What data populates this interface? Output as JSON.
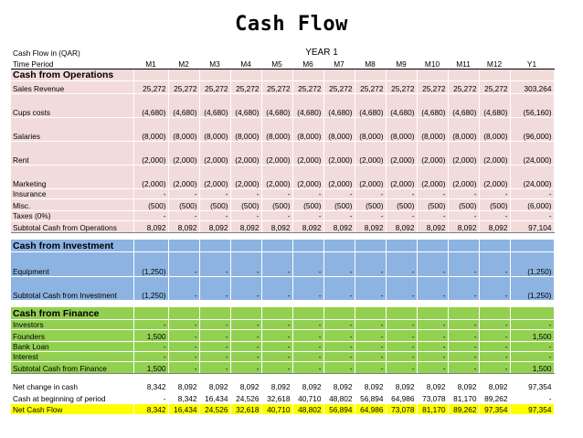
{
  "title": "Cash Flow",
  "header": {
    "row1_label": "Cash Flow in (QAR)",
    "year_label": "YEAR 1",
    "row2_label": "Time Period",
    "months": [
      "M1",
      "M2",
      "M3",
      "M4",
      "M5",
      "M6",
      "M7",
      "M8",
      "M9",
      "M10",
      "M11",
      "M12"
    ],
    "total_label": "Y1"
  },
  "operations": {
    "heading": "Cash from Operations",
    "rows": [
      {
        "label": "Sales Revenue",
        "values": [
          "25,272",
          "25,272",
          "25,272",
          "25,272",
          "25,272",
          "25,272",
          "25,272",
          "25,272",
          "25,272",
          "25,272",
          "25,272",
          "25,272"
        ],
        "total": "303,264"
      },
      {
        "label": "Cups costs",
        "values": [
          "(4,680)",
          "(4,680)",
          "(4,680)",
          "(4,680)",
          "(4,680)",
          "(4,680)",
          "(4,680)",
          "(4,680)",
          "(4,680)",
          "(4,680)",
          "(4,680)",
          "(4,680)"
        ],
        "total": "(56,160)"
      },
      {
        "label": "Salaries",
        "values": [
          "(8,000)",
          "(8,000)",
          "(8,000)",
          "(8,000)",
          "(8,000)",
          "(8,000)",
          "(8,000)",
          "(8,000)",
          "(8,000)",
          "(8,000)",
          "(8,000)",
          "(8,000)"
        ],
        "total": "(96,000)"
      },
      {
        "label": "Rent",
        "values": [
          "(2,000)",
          "(2,000)",
          "(2,000)",
          "(2,000)",
          "(2,000)",
          "(2,000)",
          "(2,000)",
          "(2,000)",
          "(2,000)",
          "(2,000)",
          "(2,000)",
          "(2,000)"
        ],
        "total": "(24,000)"
      },
      {
        "label": "Marketing",
        "values": [
          "(2,000)",
          "(2,000)",
          "(2,000)",
          "(2,000)",
          "(2,000)",
          "(2,000)",
          "(2,000)",
          "(2,000)",
          "(2,000)",
          "(2,000)",
          "(2,000)",
          "(2,000)"
        ],
        "total": "(24,000)"
      },
      {
        "label": "Insurance",
        "values": [
          "-",
          "-",
          "-",
          "-",
          "-",
          "-",
          "-",
          "-",
          "-",
          "-",
          "-",
          "-"
        ],
        "total": "-"
      },
      {
        "label": "Misc.",
        "values": [
          "(500)",
          "(500)",
          "(500)",
          "(500)",
          "(500)",
          "(500)",
          "(500)",
          "(500)",
          "(500)",
          "(500)",
          "(500)",
          "(500)"
        ],
        "total": "(6,000)"
      },
      {
        "label": "Taxes (0%)",
        "values": [
          "-",
          "-",
          "-",
          "-",
          "-",
          "-",
          "-",
          "-",
          "-",
          "-",
          "-",
          "-"
        ],
        "total": "-"
      },
      {
        "label": "Subtotal Cash from Operations",
        "values": [
          "8,092",
          "8,092",
          "8,092",
          "8,092",
          "8,092",
          "8,092",
          "8,092",
          "8,092",
          "8,092",
          "8,092",
          "8,092",
          "8,092"
        ],
        "total": "97,104"
      }
    ]
  },
  "investment": {
    "heading": "Cash from Investment",
    "rows": [
      {
        "label": "Equipment",
        "values": [
          "(1,250)",
          "-",
          "-",
          "-",
          "-",
          "-",
          "-",
          "-",
          "-",
          "-",
          "-",
          "-"
        ],
        "total": "(1,250)"
      },
      {
        "label": "Subtotal Cash from Investment",
        "values": [
          "(1,250)",
          "-",
          "-",
          "-",
          "-",
          "-",
          "-",
          "-",
          "-",
          "-",
          "-",
          "-"
        ],
        "total": "(1,250)"
      }
    ]
  },
  "finance": {
    "heading": "Cash from Finance",
    "rows": [
      {
        "label": "Investors",
        "values": [
          "-",
          "-",
          "-",
          "-",
          "-",
          "-",
          "-",
          "-",
          "-",
          "-",
          "-",
          "-"
        ],
        "total": "-"
      },
      {
        "label": "Founders",
        "values": [
          "1,500",
          "-",
          "-",
          "-",
          "-",
          "-",
          "-",
          "-",
          "-",
          "-",
          "-",
          "-"
        ],
        "total": "1,500"
      },
      {
        "label": "Bank Loan",
        "values": [
          "-",
          "-",
          "-",
          "-",
          "-",
          "-",
          "-",
          "-",
          "-",
          "-",
          "-",
          "-"
        ],
        "total": "-"
      },
      {
        "label": "Interest",
        "values": [
          "-",
          "-",
          "-",
          "-",
          "-",
          "-",
          "-",
          "-",
          "-",
          "-",
          "-",
          "-"
        ],
        "total": "-"
      },
      {
        "label": "Subtotal Cash from Finance",
        "values": [
          "1,500",
          "-",
          "-",
          "-",
          "-",
          "-",
          "-",
          "-",
          "-",
          "-",
          "-",
          "-"
        ],
        "total": "1,500"
      }
    ]
  },
  "summary": {
    "rows": [
      {
        "label": "Net change in cash",
        "values": [
          "8,342",
          "8,092",
          "8,092",
          "8,092",
          "8,092",
          "8,092",
          "8,092",
          "8,092",
          "8,092",
          "8,092",
          "8,092",
          "8,092"
        ],
        "total": "97,354"
      },
      {
        "label": "Cash at beginning of period",
        "values": [
          "-",
          "8,342",
          "16,434",
          "24,526",
          "32,618",
          "40,710",
          "48,802",
          "56,894",
          "64,986",
          "73,078",
          "81,170",
          "89,262"
        ],
        "total": "-"
      },
      {
        "label": "Net Cash Flow",
        "values": [
          "8,342",
          "16,434",
          "24,526",
          "32,618",
          "40,710",
          "48,802",
          "56,894",
          "64,986",
          "73,078",
          "81,170",
          "89,262",
          "97,354"
        ],
        "total": "97,354"
      }
    ]
  },
  "colors": {
    "operations": "#f2dcdb",
    "investment": "#8db3e2",
    "finance": "#92d050",
    "net_cash_flow": "#ffff00"
  }
}
